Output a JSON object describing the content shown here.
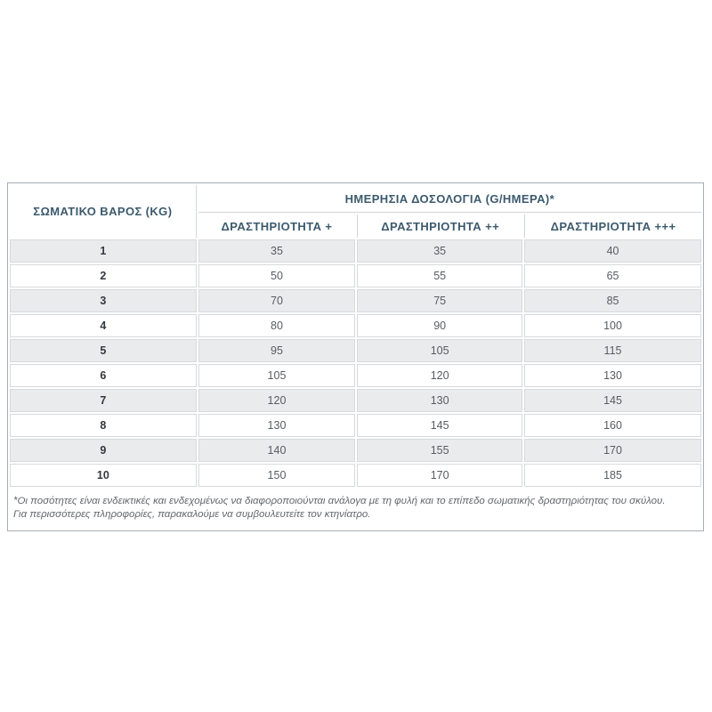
{
  "table": {
    "weight_header": "ΣΩΜΑΤΙΚΟ ΒΑΡΟΣ (KG)",
    "group_header": "ΗΜΕΡΗΣΙΑ ΔΟΣΟΛΟΓΙΑ (G/ΗΜΕΡΑ)*",
    "activity_headers": [
      "ΔΡΑΣΤΗΡΙΟΤΗΤΑ +",
      "ΔΡΑΣΤΗΡΙΟΤΗΤΑ ++",
      "ΔΡΑΣΤΗΡΙΟΤΗΤΑ +++"
    ],
    "rows": [
      {
        "weight": "1",
        "values": [
          "35",
          "35",
          "40"
        ]
      },
      {
        "weight": "2",
        "values": [
          "50",
          "55",
          "65"
        ]
      },
      {
        "weight": "3",
        "values": [
          "70",
          "75",
          "85"
        ]
      },
      {
        "weight": "4",
        "values": [
          "80",
          "90",
          "100"
        ]
      },
      {
        "weight": "5",
        "values": [
          "95",
          "105",
          "115"
        ]
      },
      {
        "weight": "6",
        "values": [
          "105",
          "120",
          "130"
        ]
      },
      {
        "weight": "7",
        "values": [
          "120",
          "130",
          "145"
        ]
      },
      {
        "weight": "8",
        "values": [
          "130",
          "145",
          "160"
        ]
      },
      {
        "weight": "9",
        "values": [
          "140",
          "155",
          "170"
        ]
      },
      {
        "weight": "10",
        "values": [
          "150",
          "170",
          "185"
        ]
      }
    ]
  },
  "footnote": {
    "line1": "*Οι ποσότητες είναι ενδεικτικές και ενδεχομένως να διαφοροποιούνται ανάλογα με τη φυλή και το επίπεδο σωματικής δραστηριότητας του σκύλου.",
    "line2": "Για περισσότερες πληροφορίες, παρακαλούμε να συμβουλευτείτε τον κτηνίατρο."
  },
  "colors": {
    "header_text": "#3c5a6d",
    "value_text": "#585d61",
    "weight_text": "#35393d",
    "stripe_background": "#e9ebec",
    "cell_border": "#d7dadc",
    "outer_border": "#a6aeb3",
    "footnote_text": "#63686c"
  }
}
